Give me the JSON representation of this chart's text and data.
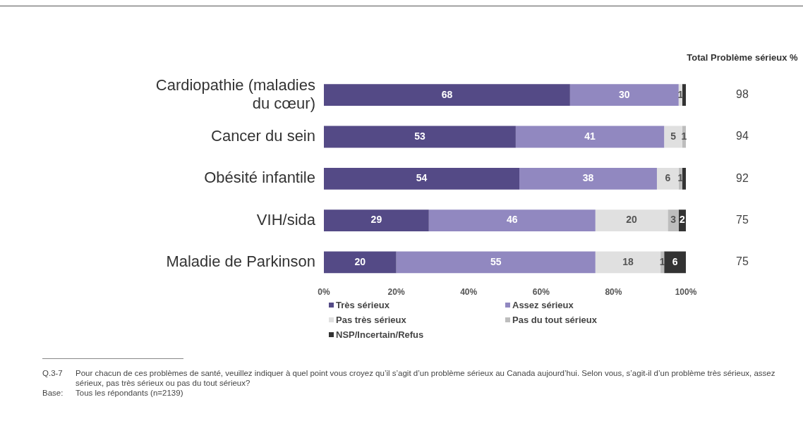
{
  "chart_data": {
    "type": "bar",
    "orientation": "horizontal",
    "stacked": true,
    "categories": [
      "Cardiopathie (maladies du cœur)",
      "Cancer du sein",
      "Obésité infantile",
      "VIH/sida",
      "Maladie de Parkinson"
    ],
    "series": [
      {
        "name": "Très sérieux",
        "color": "#544a86",
        "values": [
          68,
          53,
          54,
          29,
          20
        ],
        "value_labels": [
          "68",
          "53",
          "54",
          "29",
          "20"
        ]
      },
      {
        "name": "Assez sérieux",
        "color": "#9188c0",
        "values": [
          30,
          41,
          38,
          46,
          55
        ],
        "value_labels": [
          "30",
          "41",
          "38",
          "46",
          "55"
        ]
      },
      {
        "name": "Pas très sérieux",
        "color": "#e0e0e0",
        "values": [
          1,
          5,
          6,
          20,
          18
        ],
        "value_labels": [
          "1",
          "5",
          "6",
          "20",
          "18"
        ]
      },
      {
        "name": "Pas du tout sérieux",
        "color": "#bdbdbd",
        "values": [
          0,
          1,
          1,
          3,
          1
        ],
        "value_labels": [
          null,
          "1",
          "1",
          "3",
          "1"
        ]
      },
      {
        "name": "NSP/Incertain/Refus",
        "color": "#333333",
        "values": [
          1,
          0,
          1,
          2,
          6
        ],
        "value_labels": [
          null,
          null,
          null,
          "2",
          "6"
        ]
      }
    ],
    "xlim": [
      0,
      100
    ],
    "xticks": [
      {
        "value": 0,
        "label": "0%"
      },
      {
        "value": 20,
        "label": "20%"
      },
      {
        "value": 40,
        "label": "40%"
      },
      {
        "value": 60,
        "label": "60%"
      },
      {
        "value": 80,
        "label": "80%"
      },
      {
        "value": 100,
        "label": "100%"
      }
    ],
    "grid": false,
    "legend": "bottom",
    "annotations": [
      "Total Problème sérieux %",
      "98",
      "94",
      "92",
      "75",
      "75",
      "Q.3-7\tPour chacun de ces problèmes de santé, veuillez indiquer à quel point vous croyez qu’il s’agit d’un problème sérieux au Canada aujourd’hui. Selon vous, s’agit-il d’un problème très sérieux, assez sérieux, pas très sérieux ou pas du tout sérieux?",
      "Base:\tTous les répondants (n=2139)"
    ]
  }
}
